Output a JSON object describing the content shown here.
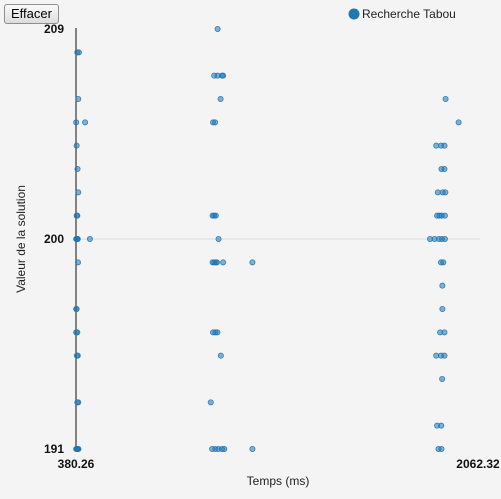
{
  "toolbar": {
    "clear_label": "Effacer"
  },
  "colors": {
    "point": "#1f77b4",
    "axis": "#111111",
    "grid": "#dddddd",
    "background": "#f4f4f4"
  },
  "chart_data": {
    "type": "scatter",
    "title": "",
    "xlabel": "Temps (ms)",
    "ylabel": "Valeur de la solution",
    "xlim": [
      380.26,
      2062.32
    ],
    "ylim": [
      191,
      209
    ],
    "x_tick_labels": [
      "380.26",
      "2062.32"
    ],
    "y_tick_labels": [
      "209",
      "200",
      "191"
    ],
    "grid": "horizontal line at 200",
    "legend_position": "top-right",
    "series": [
      {
        "name": "Recherche Tabou",
        "points": [
          [
            381,
            191
          ],
          [
            384,
            191
          ],
          [
            386,
            191
          ],
          [
            388,
            191
          ],
          [
            391,
            191
          ],
          [
            386,
            193
          ],
          [
            390,
            193
          ],
          [
            384,
            195
          ],
          [
            388,
            195
          ],
          [
            381,
            196
          ],
          [
            386,
            196
          ],
          [
            381,
            197
          ],
          [
            383,
            197
          ],
          [
            389,
            199
          ],
          [
            381,
            200
          ],
          [
            383,
            200
          ],
          [
            386,
            200
          ],
          [
            388,
            200
          ],
          [
            441,
            200
          ],
          [
            383,
            201
          ],
          [
            386,
            201
          ],
          [
            390,
            202
          ],
          [
            387,
            203
          ],
          [
            383,
            204
          ],
          [
            381,
            205
          ],
          [
            420,
            205
          ],
          [
            390,
            206
          ],
          [
            386,
            208
          ],
          [
            393,
            208
          ],
          [
            999,
            209
          ],
          [
            984,
            207
          ],
          [
            999,
            207
          ],
          [
            1018,
            207
          ],
          [
            1023,
            207
          ],
          [
            1012,
            206
          ],
          [
            979,
            205
          ],
          [
            988,
            205
          ],
          [
            977,
            201
          ],
          [
            984,
            201
          ],
          [
            991,
            201
          ],
          [
            1003,
            200
          ],
          [
            977,
            199
          ],
          [
            984,
            199
          ],
          [
            991,
            199
          ],
          [
            996,
            199
          ],
          [
            1023,
            199
          ],
          [
            1151,
            199
          ],
          [
            979,
            196
          ],
          [
            989,
            196
          ],
          [
            998,
            196
          ],
          [
            1013,
            195
          ],
          [
            969,
            193
          ],
          [
            975,
            191
          ],
          [
            989,
            191
          ],
          [
            1002,
            191
          ],
          [
            1018,
            191
          ],
          [
            1028,
            191
          ],
          [
            1151,
            191
          ],
          [
            1995,
            206
          ],
          [
            2052,
            205
          ],
          [
            1954,
            204
          ],
          [
            1975,
            204
          ],
          [
            1990,
            204
          ],
          [
            1977,
            203
          ],
          [
            1990,
            203
          ],
          [
            1961,
            202
          ],
          [
            1982,
            202
          ],
          [
            1994,
            202
          ],
          [
            1958,
            201
          ],
          [
            1968,
            201
          ],
          [
            1978,
            201
          ],
          [
            1992,
            201
          ],
          [
            1927,
            200
          ],
          [
            1947,
            200
          ],
          [
            1966,
            200
          ],
          [
            1979,
            200
          ],
          [
            1992,
            200
          ],
          [
            1975,
            199
          ],
          [
            1985,
            199
          ],
          [
            1981,
            198
          ],
          [
            1981,
            197
          ],
          [
            1971,
            196
          ],
          [
            1990,
            196
          ],
          [
            1954,
            195
          ],
          [
            1975,
            195
          ],
          [
            1990,
            195
          ],
          [
            1980,
            194
          ],
          [
            1958,
            192
          ],
          [
            1976,
            192
          ],
          [
            1964,
            191
          ],
          [
            1977,
            191
          ]
        ]
      }
    ]
  }
}
